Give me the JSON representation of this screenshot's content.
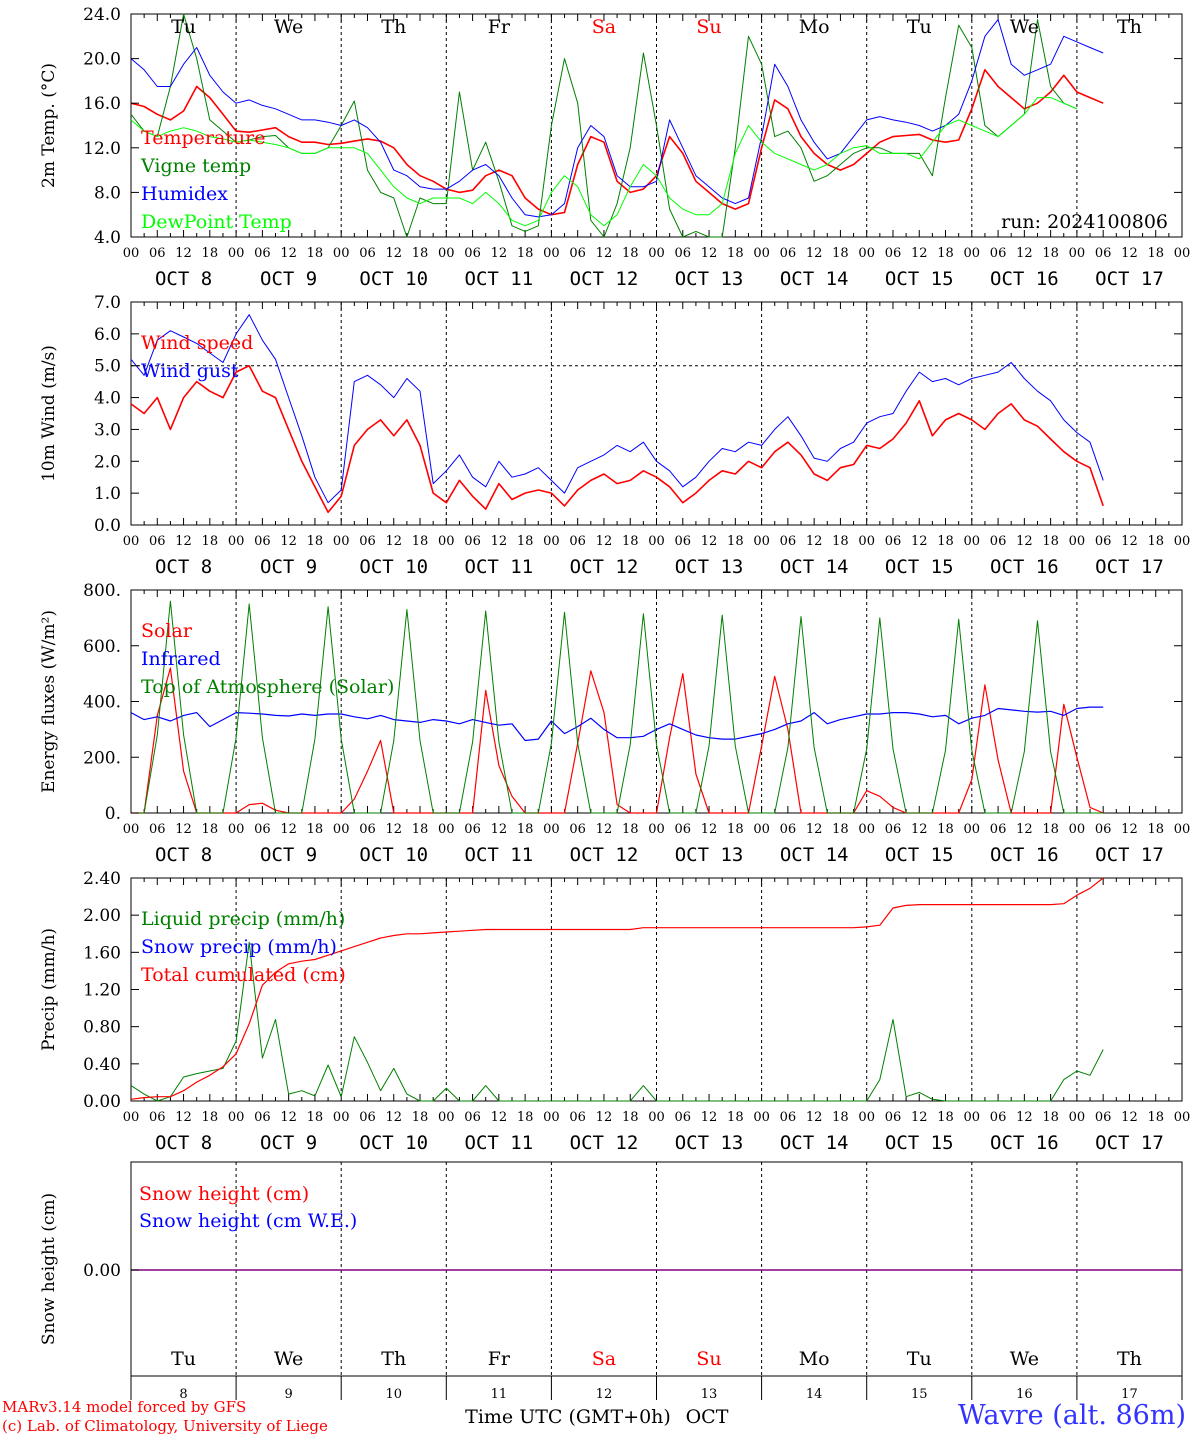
{
  "footer": {
    "model_line": "MARv3.14 model forced by GFS",
    "credit_line": "(c) Lab. of Climatology, University of Liege",
    "location": "Wavre (alt. 86m)",
    "time_axis_label": "Time UTC (GMT+0h)",
    "month_label": "OCT"
  },
  "days": {
    "weekdays": [
      "Tu",
      "We",
      "Th",
      "Fr",
      "Sa",
      "Su",
      "Mo",
      "Tu",
      "We",
      "Th"
    ],
    "weekday_colors": [
      "#000000",
      "#000000",
      "#000000",
      "#000000",
      "#ff0000",
      "#ff0000",
      "#000000",
      "#000000",
      "#000000",
      "#000000"
    ],
    "date_labels": [
      "OCT  8",
      "OCT  9",
      "OCT 10",
      "OCT 11",
      "OCT 12",
      "OCT 13",
      "OCT 14",
      "OCT 15",
      "OCT 16",
      "OCT 17"
    ],
    "day_numbers": [
      "8",
      "9",
      "10",
      "11",
      "12",
      "13",
      "14",
      "15",
      "16",
      "17"
    ],
    "hour_labels": [
      "00",
      "06",
      "12",
      "18"
    ],
    "final_hour_label": "00"
  },
  "colors": {
    "red": "#ff0000",
    "green": "#008000",
    "blue": "#0000ff",
    "light_green": "#00ff00",
    "purple": "#800080"
  },
  "chart_data": [
    {
      "id": "temp",
      "type": "line",
      "ylabel": "2m Temp. (°C)",
      "ylim": [
        4.0,
        24.0
      ],
      "yticks": [
        "4.0",
        "8.0",
        "12.0",
        "16.0",
        "20.0",
        "24.0"
      ],
      "annotation": "run: 2024100806",
      "x_hours_step": 3,
      "x_start": "2024-10-08 00 UTC",
      "series": [
        {
          "name": "Temperature",
          "color": "#ff0000",
          "width": 1.6,
          "values": [
            16.0,
            15.7,
            15.0,
            14.5,
            15.3,
            17.5,
            16.5,
            15.0,
            13.5,
            13.4,
            13.6,
            13.8,
            13.0,
            12.5,
            12.5,
            12.3,
            12.4,
            12.6,
            12.8,
            12.6,
            12.0,
            10.5,
            9.5,
            9.0,
            8.3,
            8.0,
            8.2,
            9.5,
            10.0,
            9.5,
            7.5,
            6.5,
            6.0,
            6.2,
            10.5,
            13.0,
            12.5,
            9.0,
            8.0,
            8.3,
            9.5,
            13.0,
            11.5,
            9.0,
            8.0,
            7.0,
            6.5,
            7.0,
            12.0,
            16.3,
            15.5,
            13.0,
            11.5,
            10.5,
            10.0,
            10.5,
            11.5,
            12.5,
            13.0,
            13.1,
            13.2,
            12.7,
            12.5,
            12.7,
            15.5,
            19.0,
            17.5,
            16.5,
            15.5,
            16.0,
            17.0,
            18.5,
            17.0,
            16.5,
            16.0
          ]
        },
        {
          "name": "Vigne temp",
          "color": "#008000",
          "width": 1.0,
          "values": [
            15.0,
            13.5,
            13.0,
            17.5,
            24.5,
            20.0,
            14.5,
            13.5,
            12.5,
            12.7,
            13.0,
            13.1,
            12.0,
            11.5,
            11.5,
            12.0,
            14.0,
            16.2,
            10.0,
            8.0,
            7.5,
            4.0,
            7.5,
            7.0,
            7.0,
            17.0,
            10.0,
            12.5,
            9.0,
            5.0,
            4.5,
            5.0,
            14.0,
            20.0,
            16.0,
            5.5,
            3.8,
            7.0,
            12.0,
            20.5,
            14.0,
            6.5,
            4.0,
            4.5,
            3.5,
            4.0,
            12.0,
            22.0,
            19.5,
            13.0,
            13.5,
            12.0,
            9.0,
            9.5,
            10.5,
            11.5,
            12.0,
            12.0,
            11.5,
            11.5,
            11.5,
            9.5,
            16.5,
            23.0,
            21.0,
            14.0,
            13.0,
            14.0,
            15.0,
            23.5,
            17.5,
            16.0,
            15.5
          ]
        },
        {
          "name": "Humidex",
          "color": "#0000ff",
          "width": 1.0,
          "values": [
            20.0,
            19.0,
            17.5,
            17.5,
            19.5,
            21.0,
            18.5,
            17.0,
            16.0,
            16.3,
            15.8,
            15.5,
            15.0,
            14.5,
            14.5,
            14.3,
            14.0,
            14.5,
            13.8,
            12.5,
            10.0,
            9.5,
            8.5,
            8.3,
            8.3,
            9.0,
            10.0,
            10.5,
            9.5,
            7.5,
            6.0,
            5.8,
            6.0,
            7.0,
            12.0,
            14.0,
            13.0,
            9.5,
            8.5,
            8.5,
            9.0,
            14.5,
            12.0,
            9.5,
            8.5,
            7.5,
            7.0,
            7.5,
            13.0,
            19.5,
            17.5,
            14.5,
            12.5,
            11.0,
            11.5,
            13.0,
            14.5,
            14.8,
            14.5,
            14.3,
            14.0,
            13.5,
            14.0,
            15.0,
            18.0,
            22.0,
            23.5,
            19.5,
            18.5,
            19.0,
            19.5,
            22.0,
            21.5,
            21.0,
            20.5
          ]
        },
        {
          "name": "DewPoint Temp",
          "color": "#00ff00",
          "width": 1.0,
          "values": [
            14.5,
            13.5,
            13.0,
            13.5,
            13.8,
            13.5,
            13.0,
            12.8,
            12.5,
            12.7,
            12.5,
            12.3,
            12.0,
            11.5,
            11.5,
            12.0,
            12.0,
            12.0,
            11.5,
            10.0,
            8.5,
            7.5,
            7.0,
            7.5,
            7.5,
            7.5,
            7.0,
            8.0,
            7.0,
            5.5,
            5.0,
            5.5,
            8.0,
            9.5,
            8.5,
            6.0,
            5.0,
            6.0,
            8.5,
            10.5,
            9.5,
            7.5,
            6.5,
            6.0,
            6.0,
            7.0,
            11.5,
            14.0,
            12.5,
            11.5,
            11.0,
            10.5,
            10.0,
            10.5,
            11.5,
            12.0,
            12.2,
            11.5,
            11.5,
            11.5,
            11.0,
            12.5,
            14.0,
            14.5,
            14.0,
            13.5,
            13.0,
            14.0,
            15.0,
            16.5,
            16.5,
            16.0,
            15.5
          ]
        }
      ]
    },
    {
      "id": "wind",
      "type": "line",
      "ylabel": "10m Wind (m/s)",
      "ylim": [
        0.0,
        7.0
      ],
      "yticks": [
        "0.0",
        "1.0",
        "2.0",
        "3.0",
        "4.0",
        "5.0",
        "6.0",
        "7.0"
      ],
      "reference_line": 5.0,
      "x_hours_step": 3,
      "series": [
        {
          "name": "Wind speed",
          "color": "#ff0000",
          "width": 1.6,
          "values": [
            3.8,
            3.5,
            4.0,
            3.0,
            4.0,
            4.5,
            4.2,
            4.0,
            4.8,
            5.0,
            4.2,
            4.0,
            3.0,
            2.0,
            1.2,
            0.4,
            0.9,
            2.5,
            3.0,
            3.3,
            2.8,
            3.3,
            2.5,
            1.0,
            0.7,
            1.4,
            0.9,
            0.5,
            1.3,
            0.8,
            1.0,
            1.1,
            1.0,
            0.6,
            1.1,
            1.4,
            1.6,
            1.3,
            1.4,
            1.7,
            1.5,
            1.2,
            0.7,
            1.0,
            1.4,
            1.7,
            1.6,
            2.0,
            1.8,
            2.3,
            2.6,
            2.2,
            1.6,
            1.4,
            1.8,
            1.9,
            2.5,
            2.4,
            2.7,
            3.2,
            3.9,
            2.8,
            3.3,
            3.5,
            3.3,
            3.0,
            3.5,
            3.8,
            3.3,
            3.1,
            2.7,
            2.3,
            2.0,
            1.8,
            0.6
          ]
        },
        {
          "name": "Wind gust",
          "color": "#0000ff",
          "width": 1.0,
          "values": [
            5.2,
            4.7,
            5.8,
            6.1,
            5.9,
            5.7,
            5.4,
            5.1,
            6.0,
            6.6,
            5.8,
            5.2,
            4.0,
            2.8,
            1.5,
            0.7,
            1.1,
            4.5,
            4.7,
            4.4,
            4.0,
            4.6,
            4.2,
            1.3,
            1.7,
            2.2,
            1.5,
            1.2,
            2.0,
            1.5,
            1.6,
            1.8,
            1.4,
            1.0,
            1.8,
            2.0,
            2.2,
            2.5,
            2.3,
            2.6,
            2.0,
            1.7,
            1.2,
            1.5,
            2.0,
            2.4,
            2.3,
            2.6,
            2.5,
            3.0,
            3.4,
            2.8,
            2.1,
            2.0,
            2.4,
            2.6,
            3.2,
            3.4,
            3.5,
            4.2,
            4.8,
            4.5,
            4.6,
            4.4,
            4.6,
            4.7,
            4.8,
            5.1,
            4.6,
            4.2,
            3.9,
            3.3,
            2.9,
            2.6,
            1.4
          ]
        }
      ]
    },
    {
      "id": "energy",
      "type": "line",
      "ylabel": "Energy fluxes (W/m²)",
      "ylim": [
        0,
        800
      ],
      "yticks": [
        "0.",
        "200.",
        "400.",
        "600.",
        "800."
      ],
      "x_hours_step": 3,
      "series": [
        {
          "name": "Solar",
          "color": "#ff0000",
          "width": 1.2,
          "values": [
            0,
            0,
            350,
            520,
            150,
            0,
            0,
            0,
            0,
            30,
            35,
            10,
            0,
            0,
            0,
            0,
            0,
            50,
            150,
            260,
            0,
            0,
            0,
            0,
            0,
            0,
            0,
            440,
            170,
            60,
            0,
            0,
            0,
            0,
            250,
            510,
            360,
            30,
            0,
            0,
            0,
            270,
            500,
            140,
            0,
            0,
            0,
            0,
            240,
            490,
            300,
            0,
            0,
            0,
            0,
            0,
            80,
            60,
            20,
            0,
            0,
            0,
            0,
            0,
            120,
            460,
            190,
            0,
            0,
            0,
            0,
            390,
            200,
            20,
            0
          ]
        },
        {
          "name": "Infrared",
          "color": "#0000ff",
          "width": 1.2,
          "values": [
            360,
            335,
            345,
            330,
            350,
            360,
            310,
            335,
            360,
            358,
            355,
            350,
            348,
            355,
            350,
            355,
            355,
            345,
            338,
            350,
            335,
            330,
            325,
            335,
            330,
            320,
            335,
            325,
            315,
            320,
            260,
            265,
            330,
            285,
            310,
            340,
            300,
            270,
            270,
            275,
            300,
            320,
            300,
            280,
            270,
            265,
            265,
            275,
            285,
            300,
            320,
            330,
            360,
            320,
            335,
            345,
            355,
            355,
            360,
            360,
            355,
            345,
            350,
            320,
            340,
            350,
            375,
            370,
            365,
            362,
            365,
            350,
            375,
            380,
            380
          ]
        },
        {
          "name": "Top of Atmosphere (Solar)",
          "color": "#008000",
          "width": 1.0,
          "values": [
            0,
            0,
            280,
            760,
            280,
            0,
            0,
            0,
            270,
            750,
            270,
            0,
            0,
            0,
            265,
            740,
            265,
            0,
            0,
            0,
            260,
            730,
            260,
            0,
            0,
            0,
            255,
            725,
            255,
            0,
            0,
            0,
            250,
            720,
            250,
            0,
            0,
            0,
            245,
            715,
            245,
            0,
            0,
            0,
            240,
            710,
            240,
            0,
            0,
            0,
            235,
            705,
            235,
            0,
            0,
            0,
            230,
            700,
            230,
            0,
            0,
            0,
            225,
            695,
            225,
            0,
            0,
            0,
            220,
            690,
            220,
            0,
            0,
            0,
            0
          ]
        }
      ]
    },
    {
      "id": "precip",
      "type": "line",
      "ylabel": "Precip (mm/h)",
      "ylim": [
        0.0,
        2.6
      ],
      "yticks": [
        "0.00",
        "0.40",
        "0.80",
        "1.20",
        "1.60",
        "2.00",
        "2.40"
      ],
      "x_hours_step": 3,
      "series": [
        {
          "name": "Liquid precip (mm/h)",
          "color": "#008000",
          "width": 1.0,
          "values": [
            0.18,
            0.08,
            0.0,
            0.05,
            0.28,
            0.32,
            0.35,
            0.38,
            0.7,
            1.85,
            0.5,
            0.95,
            0.08,
            0.12,
            0.06,
            0.42,
            0.05,
            0.75,
            0.45,
            0.12,
            0.38,
            0.08,
            0.0,
            0.0,
            0.15,
            0.0,
            0.0,
            0.18,
            0.0,
            0.0,
            0.0,
            0.0,
            0.0,
            0.0,
            0.0,
            0.0,
            0.0,
            0.0,
            0.0,
            0.18,
            0.0,
            0.0,
            0.0,
            0.0,
            0.0,
            0.0,
            0.0,
            0.0,
            0.0,
            0.0,
            0.0,
            0.0,
            0.0,
            0.0,
            0.0,
            0.0,
            0.0,
            0.25,
            0.95,
            0.05,
            0.1,
            0.02,
            0.0,
            0.0,
            0.0,
            0.0,
            0.0,
            0.0,
            0.0,
            0.0,
            0.0,
            0.25,
            0.35,
            0.3,
            0.6
          ]
        },
        {
          "name": "Snow precip (mm/h)",
          "color": "#0000ff",
          "width": 1.0,
          "values": []
        },
        {
          "name": "Total cumulated (cm)",
          "color": "#ff0000",
          "width": 1.2,
          "values": [
            0.02,
            0.04,
            0.05,
            0.05,
            0.12,
            0.22,
            0.3,
            0.4,
            0.55,
            0.9,
            1.35,
            1.5,
            1.6,
            1.63,
            1.65,
            1.7,
            1.75,
            1.8,
            1.85,
            1.9,
            1.93,
            1.95,
            1.95,
            1.96,
            1.97,
            1.98,
            1.99,
            2.0,
            2.0,
            2.0,
            2.0,
            2.0,
            2.0,
            2.0,
            2.0,
            2.0,
            2.0,
            2.0,
            2.0,
            2.02,
            2.02,
            2.02,
            2.02,
            2.02,
            2.02,
            2.02,
            2.02,
            2.02,
            2.02,
            2.02,
            2.02,
            2.02,
            2.02,
            2.02,
            2.02,
            2.02,
            2.03,
            2.05,
            2.25,
            2.28,
            2.29,
            2.29,
            2.29,
            2.29,
            2.29,
            2.29,
            2.29,
            2.29,
            2.29,
            2.29,
            2.29,
            2.3,
            2.4,
            2.48,
            2.6
          ]
        }
      ]
    },
    {
      "id": "snow",
      "type": "line",
      "ylabel": "Snow height (cm)",
      "yticks": [
        "0.00"
      ],
      "x_hours_step": 3,
      "series": [
        {
          "name": "Snow height (cm)",
          "color": "#ff0000",
          "width": 1.0,
          "values": [
            0.0
          ]
        },
        {
          "name": "Snow height (cm W.E.)",
          "color": "#0000ff",
          "width": 1.0,
          "values": [
            0.0
          ]
        }
      ]
    }
  ]
}
